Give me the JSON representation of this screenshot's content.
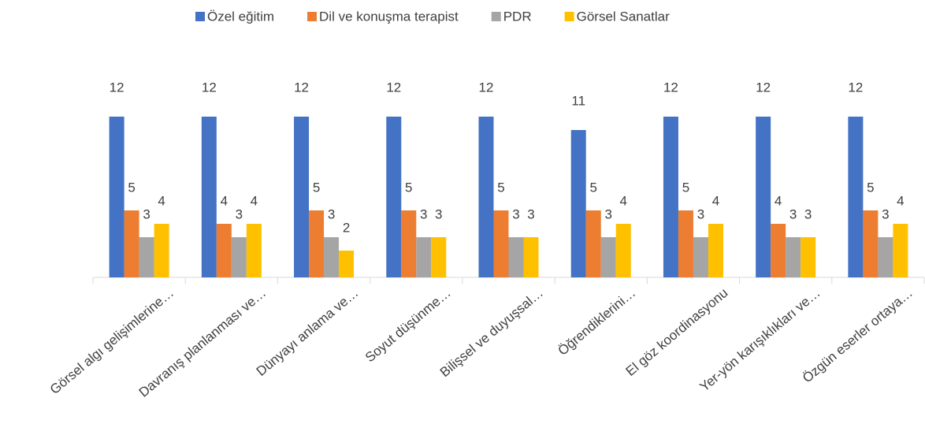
{
  "chart_data": {
    "type": "bar",
    "categories": [
      "Görsel algı gelişimlerine…",
      "Davranış planlanması ve…",
      "Dünyayı anlama ve…",
      "Soyut düşünme…",
      "Bilişsel ve duyuşsal…",
      "Öğrendiklerini…",
      "El göz koordinasyonu",
      "Yer-yön karışıklıkları ve…",
      "Özgün eserler ortaya…"
    ],
    "series": [
      {
        "name": "Özel eğitim",
        "color": "#4472c4",
        "values": [
          12,
          12,
          12,
          12,
          12,
          11,
          12,
          12,
          12
        ]
      },
      {
        "name": "Dil ve konuşma terapist",
        "color": "#ed7d31",
        "values": [
          5,
          4,
          5,
          5,
          5,
          5,
          5,
          4,
          5
        ]
      },
      {
        "name": "PDR",
        "color": "#a5a5a5",
        "values": [
          3,
          3,
          3,
          3,
          3,
          3,
          3,
          3,
          3
        ]
      },
      {
        "name": "Görsel Sanatlar",
        "color": "#ffc000",
        "values": [
          4,
          4,
          2,
          3,
          3,
          4,
          4,
          3,
          4
        ]
      }
    ],
    "ylim": [
      0,
      12
    ],
    "legend": "top"
  }
}
